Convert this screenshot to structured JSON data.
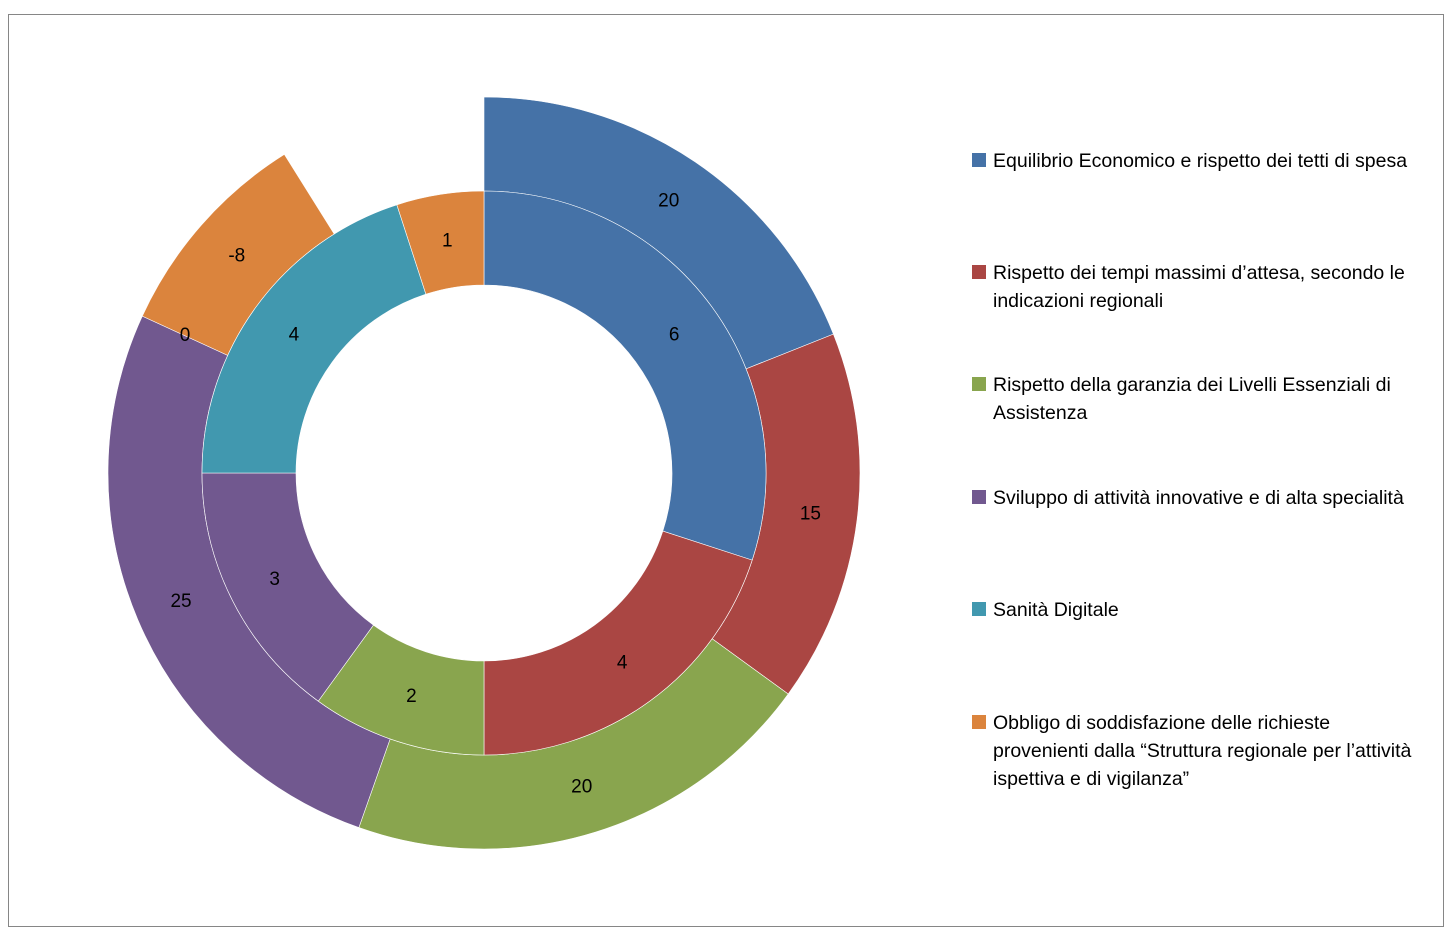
{
  "chart_data": {
    "type": "doughnut",
    "title": "",
    "categories": [
      "Equilibrio Economico e rispetto dei tetti di spesa",
      "Rispetto dei tempi massimi d’attesa, secondo le indicazioni regionali",
      "Rispetto della garanzia dei Livelli Essenziali di Assistenza",
      "Sviluppo di attività innovative e di alta specialità",
      "Sanità Digitale",
      "Obbligo di soddisfazione delle richieste provenienti dalla “Struttura regionale per l’attività ispettiva e di vigilanza”"
    ],
    "colors": [
      "#4572A7",
      "#AA4643",
      "#89A54E",
      "#71588F",
      "#4198AF",
      "#DB843D"
    ],
    "series": [
      {
        "ring": "inner",
        "values": [
          6,
          4,
          2,
          3,
          4,
          1
        ],
        "labels": [
          "6",
          "4",
          "2",
          "3",
          "4",
          "1"
        ]
      },
      {
        "ring": "outer",
        "values": [
          20,
          15,
          20,
          25,
          0,
          -8
        ],
        "labels": [
          "20",
          "15",
          "20",
          "25",
          "0",
          "-8"
        ]
      }
    ],
    "legend_position": "right"
  }
}
